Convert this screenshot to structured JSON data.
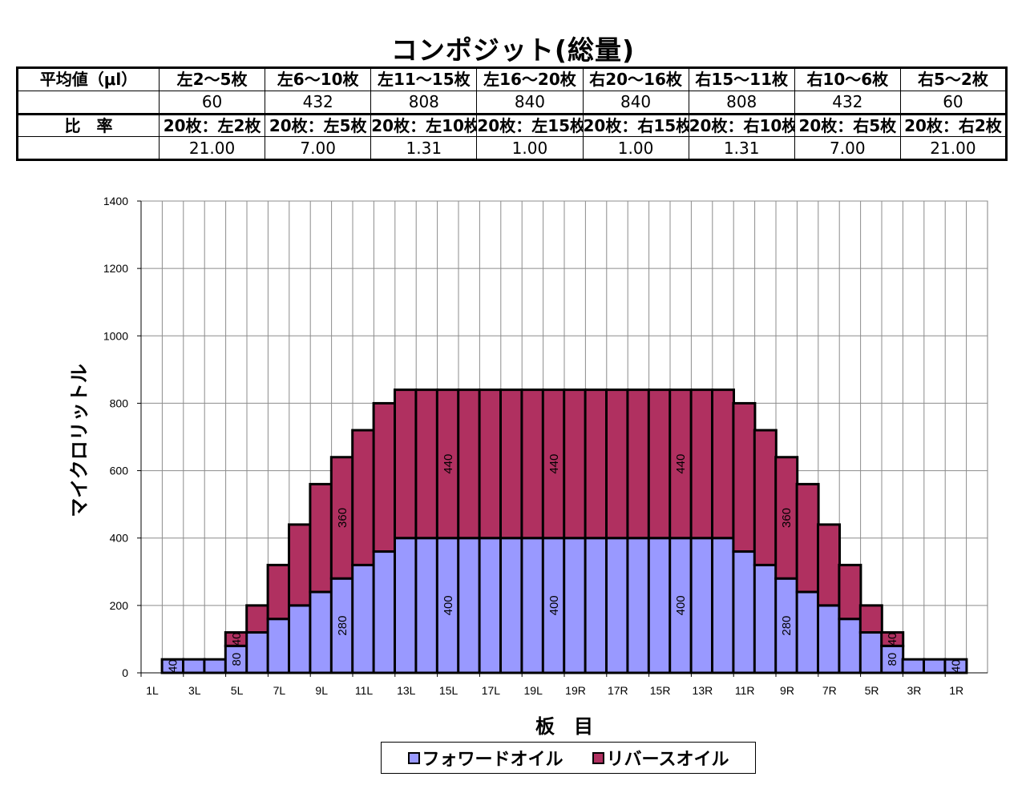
{
  "title": "コンポジット(総量)",
  "table": {
    "rows": [
      [
        "平均値（μl）",
        "左2～5枚",
        "左6～10枚",
        "左11～15枚",
        "左16～20枚",
        "右20～16枚",
        "右15～11枚",
        "右10～6枚",
        "右5～2枚"
      ],
      [
        "",
        "60",
        "432",
        "808",
        "840",
        "840",
        "808",
        "432",
        "60"
      ],
      [
        "比　率",
        "20枚：左2枚",
        "20枚：左5枚",
        "20枚：左10枚",
        "20枚：左15枚",
        "20枚：右15枚",
        "20枚：右10枚",
        "20枚：右5枚",
        "20枚：右2枚"
      ],
      [
        "",
        "21.00",
        "7.00",
        "1.31",
        "1.00",
        "1.00",
        "1.31",
        "7.00",
        "21.00"
      ]
    ]
  },
  "chart_data": {
    "type": "bar",
    "stacked": true,
    "title": "",
    "xlabel": "板　目",
    "ylabel": "マイクロリットル",
    "ylim": [
      0,
      1400
    ],
    "yticks": [
      0,
      200,
      400,
      600,
      800,
      1000,
      1200,
      1400
    ],
    "grid": true,
    "legend_position": "bottom",
    "categories": [
      "1L",
      "2L",
      "3L",
      "4L",
      "5L",
      "6L",
      "7L",
      "8L",
      "9L",
      "10L",
      "11L",
      "12L",
      "13L",
      "14L",
      "15L",
      "16L",
      "17L",
      "18L",
      "19L",
      "20L",
      "20R",
      "19R",
      "18R",
      "17R",
      "16R",
      "15R",
      "14R",
      "13R",
      "12R",
      "11R",
      "10R",
      "9R",
      "8R",
      "7R",
      "6R",
      "5R",
      "4R",
      "3R",
      "2R",
      "1R"
    ],
    "tick_labels": [
      "1L",
      "3L",
      "5L",
      "7L",
      "9L",
      "11L",
      "13L",
      "15L",
      "17L",
      "19L",
      "19R",
      "17R",
      "15R",
      "13R",
      "11R",
      "9R",
      "7R",
      "5R",
      "3R",
      "1R"
    ],
    "series": [
      {
        "name": "フォワードオイル",
        "color": "#9999ff",
        "values": [
          0,
          40,
          40,
          40,
          80,
          120,
          160,
          200,
          240,
          280,
          320,
          360,
          400,
          400,
          400,
          400,
          400,
          400,
          400,
          400,
          400,
          400,
          400,
          400,
          400,
          400,
          400,
          400,
          360,
          320,
          280,
          240,
          200,
          160,
          120,
          80,
          40,
          40,
          40,
          0
        ]
      },
      {
        "name": "リバースオイル",
        "color": "#b03060",
        "values": [
          0,
          0,
          0,
          0,
          40,
          80,
          160,
          240,
          320,
          360,
          400,
          440,
          440,
          440,
          440,
          440,
          440,
          440,
          440,
          440,
          440,
          440,
          440,
          440,
          440,
          440,
          440,
          440,
          440,
          400,
          360,
          320,
          240,
          160,
          80,
          40,
          0,
          0,
          0,
          0
        ]
      }
    ],
    "data_labels": [
      {
        "category": "2L",
        "series": "フォワードオイル",
        "text": "40"
      },
      {
        "category": "5L",
        "series": "フォワードオイル",
        "text": "80"
      },
      {
        "category": "5L",
        "series": "リバースオイル",
        "text": "40"
      },
      {
        "category": "10L",
        "series": "フォワードオイル",
        "text": "280"
      },
      {
        "category": "10L",
        "series": "リバースオイル",
        "text": "360"
      },
      {
        "category": "15L",
        "series": "フォワードオイル",
        "text": "400"
      },
      {
        "category": "15L",
        "series": "リバースオイル",
        "text": "440"
      },
      {
        "category": "20L",
        "series": "フォワードオイル",
        "text": "400"
      },
      {
        "category": "20L",
        "series": "リバースオイル",
        "text": "440"
      },
      {
        "category": "15R",
        "series": "フォワードオイル",
        "text": "400"
      },
      {
        "category": "15R",
        "series": "リバースオイル",
        "text": "440"
      },
      {
        "category": "10R",
        "series": "フォワードオイル",
        "text": "280"
      },
      {
        "category": "10R",
        "series": "リバースオイル",
        "text": "360"
      },
      {
        "category": "5R",
        "series": "フォワードオイル",
        "text": "80"
      },
      {
        "category": "5R",
        "series": "リバースオイル",
        "text": "40"
      },
      {
        "category": "2R",
        "series": "フォワードオイル",
        "text": "40"
      }
    ]
  }
}
